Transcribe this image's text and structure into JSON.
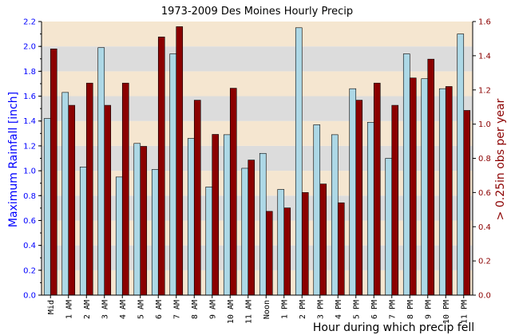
{
  "chart_data": {
    "type": "bar",
    "title": "1973-2009 Des Moines Hourly Precip",
    "xlabel": "Hour during which precip fell",
    "categories": [
      "Mid",
      "1 AM",
      "2 AM",
      "3 AM",
      "4 AM",
      "5 AM",
      "6 AM",
      "7 AM",
      "8 AM",
      "9 AM",
      "10 AM",
      "11 AM",
      "Noon",
      "1 PM",
      "2 PM",
      "3 PM",
      "4 PM",
      "5 PM",
      "6 PM",
      "7 PM",
      "8 PM",
      "9 PM",
      "10 PM",
      "11 PM"
    ],
    "y_left": {
      "label": "Maximum Rainfall [inch]",
      "range": [
        0,
        2.2
      ],
      "ticks": [
        "0.0",
        "0.2",
        "0.4",
        "0.6",
        "0.8",
        "1.0",
        "1.2",
        "1.4",
        "1.6",
        "1.8",
        "2.0",
        "2.2"
      ],
      "color": "#0000ff"
    },
    "y_right": {
      "label": "> 0.25in obs per year",
      "range": [
        0,
        1.6
      ],
      "ticks": [
        "0.0",
        "0.2",
        "0.4",
        "0.6",
        "0.8",
        "1.0",
        "1.2",
        "1.4",
        "1.6"
      ],
      "color": "#8b0000"
    },
    "series": [
      {
        "axis": "left",
        "color": "#add8e6",
        "values": [
          1.42,
          1.63,
          1.03,
          1.99,
          0.95,
          1.22,
          1.01,
          1.94,
          1.26,
          0.87,
          1.29,
          1.02,
          1.14,
          0.85,
          2.15,
          1.37,
          1.29,
          1.66,
          1.39,
          1.1,
          1.94,
          1.74,
          1.66,
          2.1
        ]
      },
      {
        "axis": "right",
        "color": "#8b0000",
        "values": [
          1.44,
          1.11,
          1.24,
          1.11,
          1.24,
          0.87,
          1.51,
          1.57,
          1.14,
          0.94,
          1.21,
          0.79,
          0.49,
          0.51,
          0.6,
          0.65,
          0.54,
          1.14,
          1.24,
          1.11,
          1.27,
          1.38,
          1.22,
          1.08
        ]
      }
    ],
    "background_bands": [
      "#f5e6d0",
      "#dcdcdc"
    ],
    "grid": false,
    "legend": "none"
  }
}
